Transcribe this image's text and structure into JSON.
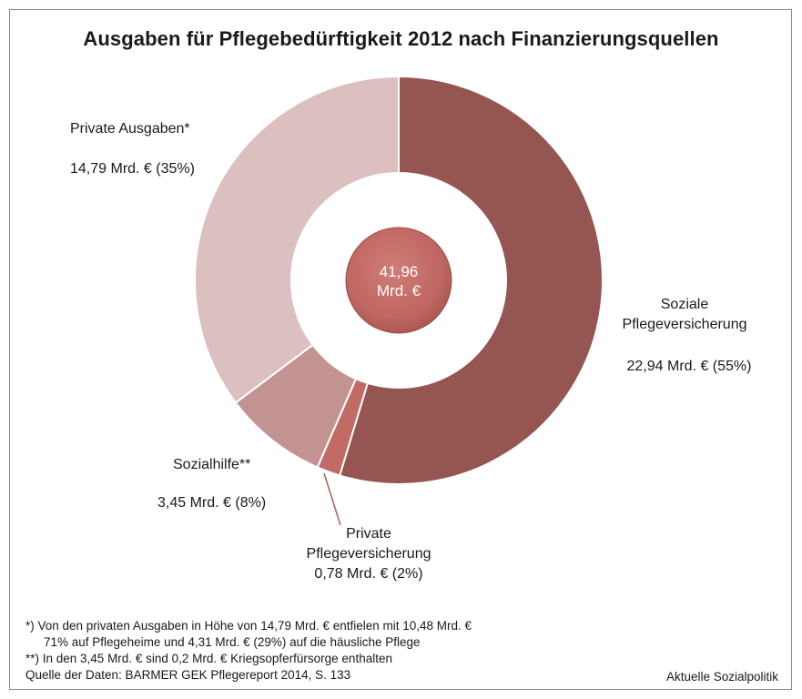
{
  "chart_data": {
    "type": "pie",
    "title": "Ausgaben für Pflegebedürftigkeit 2012 nach Finanzierungsquellen",
    "total_label": [
      "41,96",
      "Mrd. €"
    ],
    "total": 41.96,
    "slices": [
      {
        "name": "Soziale Pflegeversicherung",
        "value": 22.94,
        "percent": 55,
        "color": "#955550",
        "label_lines": [
          "Soziale",
          "Pflegeversicherung"
        ],
        "value_label": "22,94 Mrd. € (55%)"
      },
      {
        "name": "Private Pflegeversicherung",
        "value": 0.78,
        "percent": 2,
        "color": "#c16a66",
        "label_lines": [
          "Private",
          "Pflegeversicherung"
        ],
        "value_label": "0,78 Mrd. € (2%)"
      },
      {
        "name": "Sozialhilfe**",
        "value": 3.45,
        "percent": 8,
        "color": "#c39391",
        "label_lines": [
          "Sozialhilfe**"
        ],
        "value_label": "3,45 Mrd. € (8%)"
      },
      {
        "name": "Private Ausgaben*",
        "value": 14.79,
        "percent": 35,
        "color": "#dcc0c0",
        "label_lines": [
          "Private Ausgaben*"
        ],
        "value_label": "14,79 Mrd. € (35%)"
      }
    ]
  },
  "footnotes": {
    "line1": "*)  Von den privaten Ausgaben in Höhe von 14,79 Mrd. € entfielen mit 10,48 Mrd. €",
    "line2": "71% auf Pflegeheime und 4,31 Mrd. € (29%) auf die häusliche Pflege",
    "line3": "**) In den 3,45 Mrd. € sind 0,2 Mrd. € Kriegsopferfürsorge enthalten",
    "line4": "Quelle der Daten: BARMER GEK Pflegereport 2014, S. 133"
  },
  "brand": "Aktuelle Sozialpolitik"
}
